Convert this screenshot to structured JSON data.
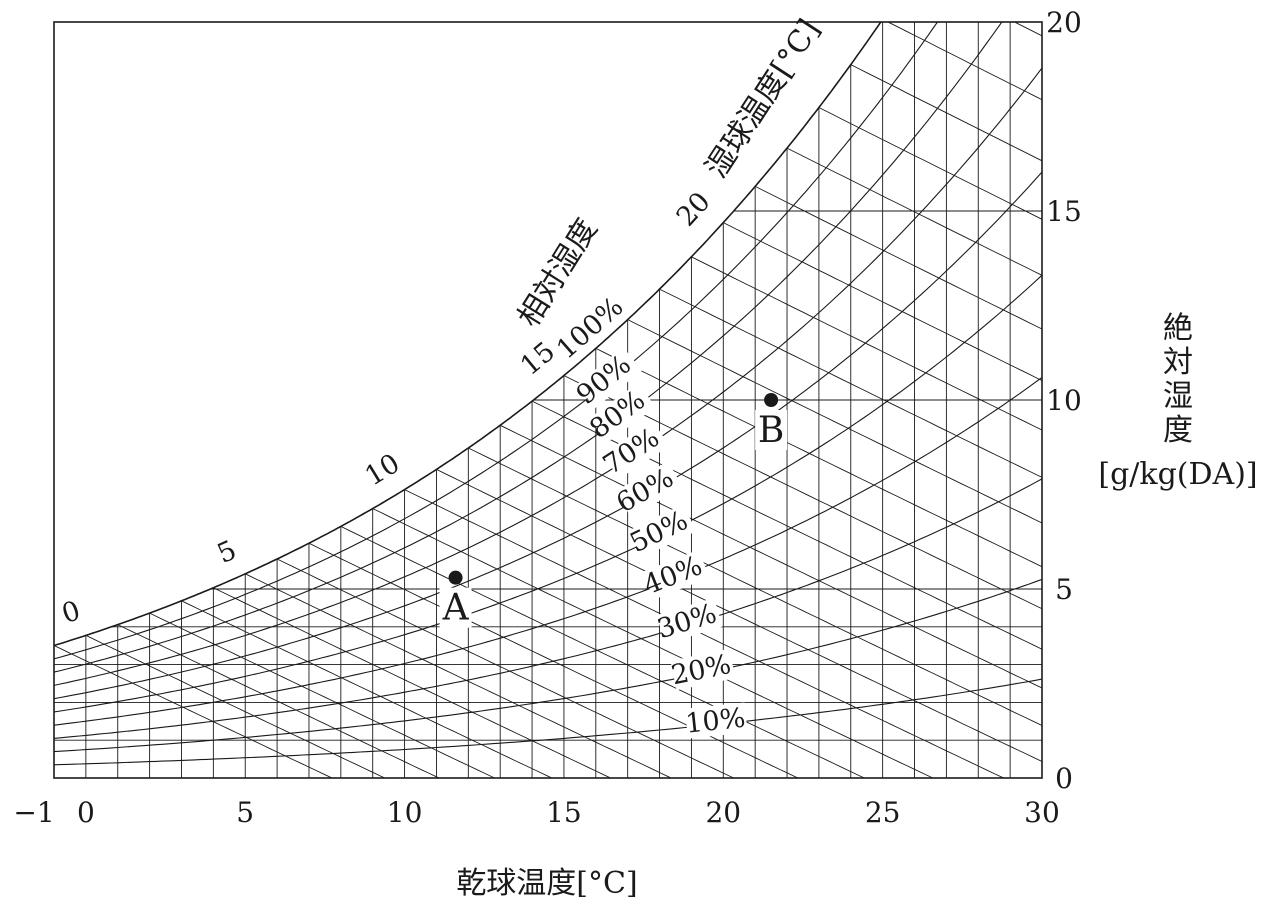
{
  "chart_data": {
    "type": "psychrometric",
    "x_axis": {
      "label": "乾球温度[°C]",
      "range": [
        -1,
        30
      ],
      "ticks": [
        -1,
        0,
        5,
        10,
        15,
        20,
        25,
        30
      ],
      "tick_labels": [
        "−1",
        "0",
        "5",
        "10",
        "15",
        "20",
        "25",
        "30"
      ]
    },
    "y_axis": {
      "label_lines": [
        "絶",
        "対",
        "湿",
        "度",
        "[g/kg(DA)]"
      ],
      "range": [
        0,
        20
      ],
      "ticks": [
        0,
        5,
        10,
        15,
        20
      ],
      "tick_labels": [
        "0",
        "5",
        "10",
        "15",
        "20"
      ],
      "position": "right"
    },
    "wet_bulb": {
      "label": "湿球温度[°C]",
      "values": [
        -1,
        0,
        1,
        2,
        3,
        4,
        5,
        6,
        7,
        8,
        9,
        10,
        11,
        12,
        13,
        14,
        15,
        16,
        17,
        18,
        19,
        20,
        21,
        22,
        23,
        24,
        25,
        26,
        27,
        28,
        29,
        30
      ],
      "labeled": [
        {
          "value": 0,
          "text": "0"
        },
        {
          "value": 5,
          "text": "5"
        },
        {
          "value": 10,
          "text": "10"
        },
        {
          "value": 15,
          "text": "15"
        },
        {
          "value": 20,
          "text": "20"
        }
      ]
    },
    "relative_humidity": {
      "label": "相対湿度",
      "values": [
        100,
        90,
        80,
        70,
        60,
        50,
        40,
        30,
        20,
        10
      ],
      "labels": [
        "100%",
        "90%",
        "80%",
        "70%",
        "60%",
        "50%",
        "40%",
        "30%",
        "20%",
        "10%"
      ]
    },
    "absolute_humidity_lines": [
      1,
      2,
      3,
      4,
      5,
      10,
      15
    ],
    "dry_bulb_lines": [
      -1,
      0,
      1,
      2,
      3,
      4,
      5,
      6,
      7,
      8,
      9,
      10,
      11,
      12,
      13,
      14,
      15,
      16,
      17,
      18,
      19,
      20,
      21,
      22,
      23,
      24,
      25,
      26,
      27,
      28,
      29,
      30
    ],
    "points": [
      {
        "label": "A",
        "dry_bulb": 11.6,
        "absolute_humidity": 5.3
      },
      {
        "label": "B",
        "dry_bulb": 21.5,
        "absolute_humidity": 10.0
      }
    ],
    "grid": false,
    "legend": "none"
  }
}
